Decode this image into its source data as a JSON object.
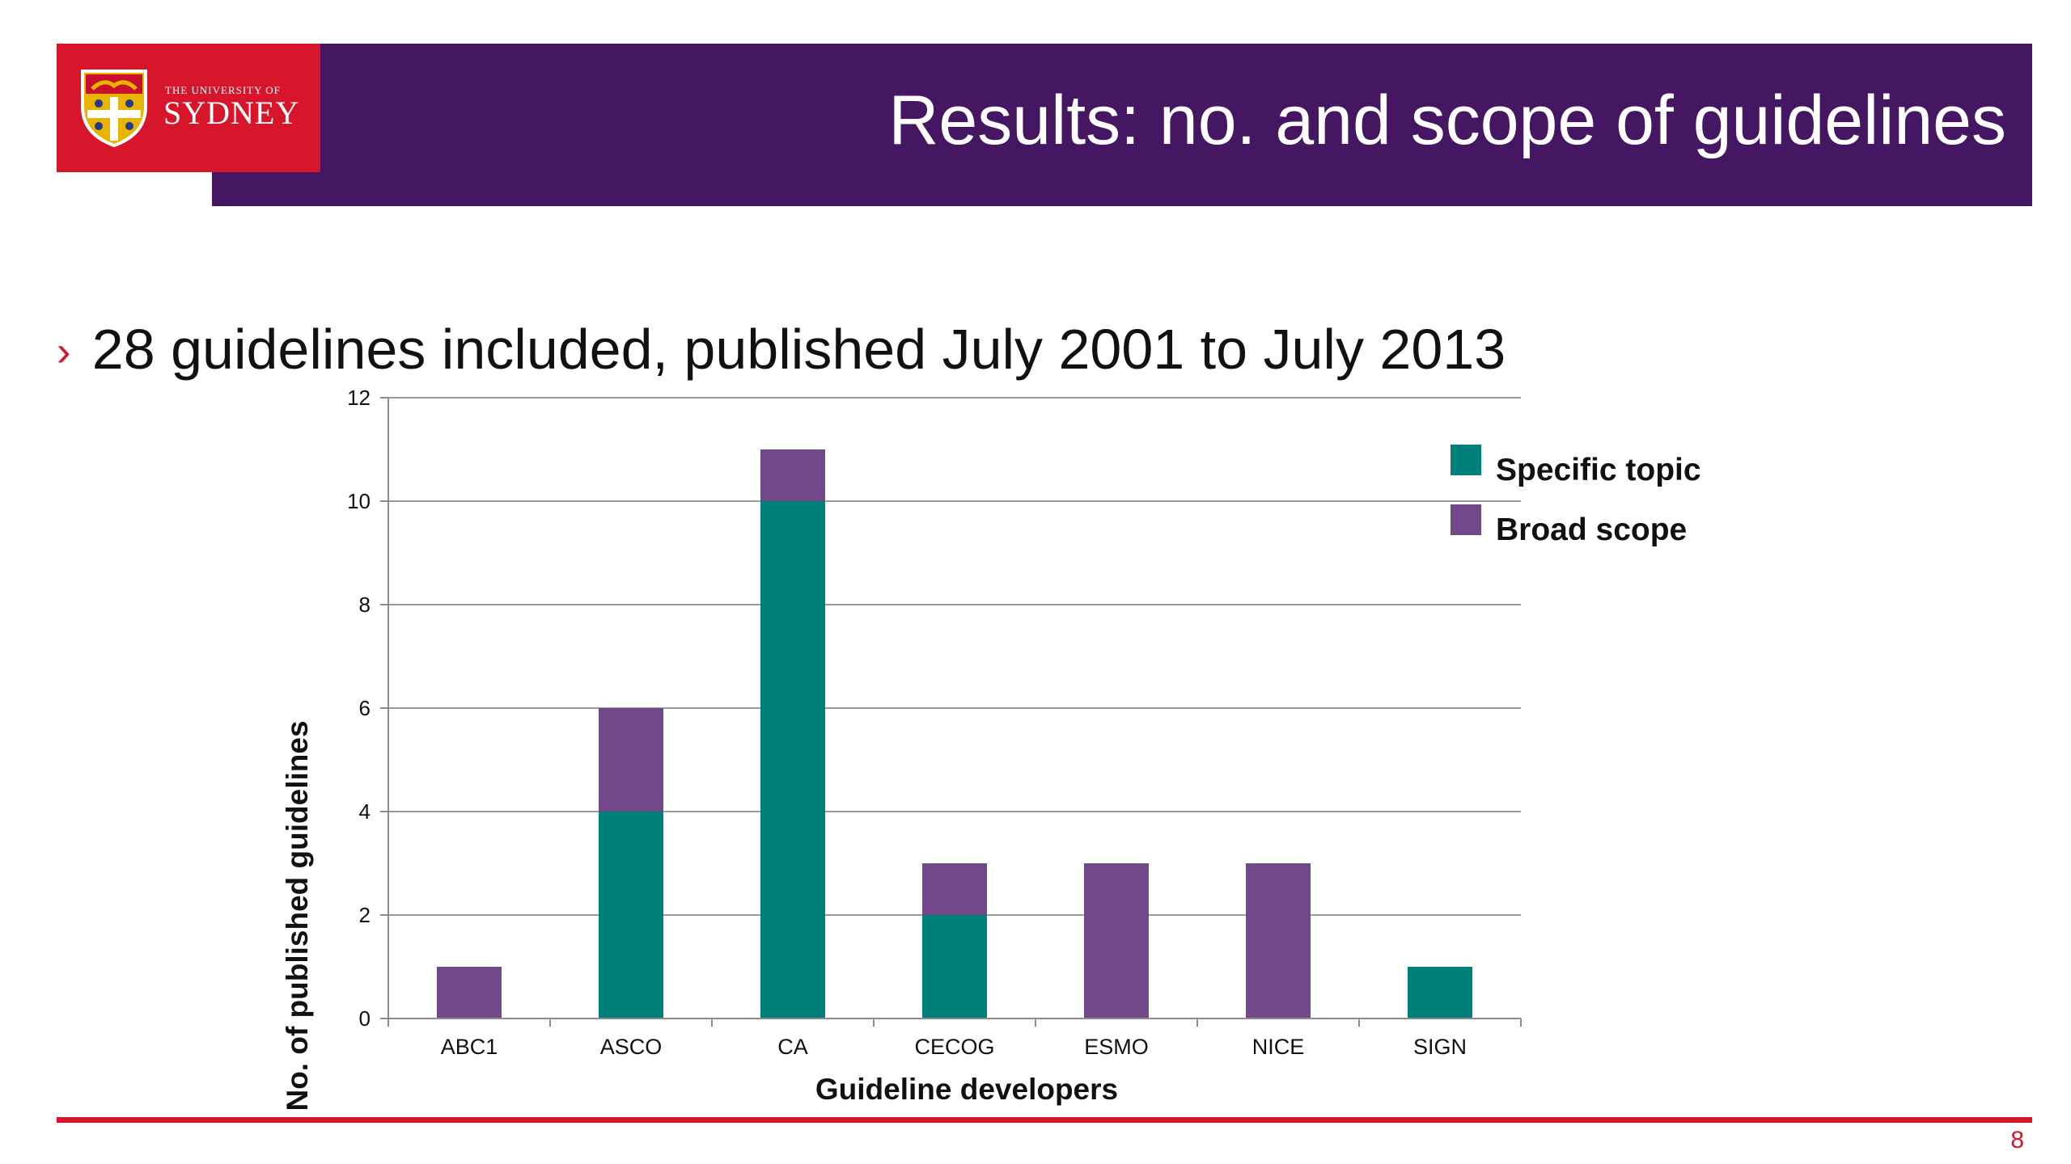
{
  "slide": {
    "title": "Results: no. and scope of guidelines",
    "bullet": "28 guidelines included, published July 2001 to July 2013",
    "bullet_marker": "›",
    "page_number": "8"
  },
  "logo": {
    "small_text": "THE UNIVERSITY OF",
    "big_text": "SYDNEY",
    "icon": "university-crest-icon"
  },
  "colors": {
    "title_bar": "#451662",
    "logo_bg": "#d7152b",
    "accent": "#d7152b"
  },
  "chart_data": {
    "type": "bar",
    "stacked": true,
    "categories": [
      "ABC1",
      "ASCO",
      "CA",
      "CECOG",
      "ESMO",
      "NICE",
      "SIGN"
    ],
    "series": [
      {
        "name": "Specific topic",
        "color": "#00807a",
        "values": [
          0,
          4,
          10,
          2,
          0,
          0,
          1
        ]
      },
      {
        "name": "Broad scope",
        "color": "#71498a",
        "values": [
          1,
          2,
          1,
          1,
          3,
          3,
          0
        ]
      }
    ],
    "xlabel": "Guideline developers",
    "ylabel": "No. of published guidelines",
    "ylim": [
      0,
      12
    ],
    "yticks": [
      "0",
      "2",
      "4",
      "6",
      "8",
      "10",
      "12"
    ],
    "grid": true,
    "legend_position": "right"
  }
}
